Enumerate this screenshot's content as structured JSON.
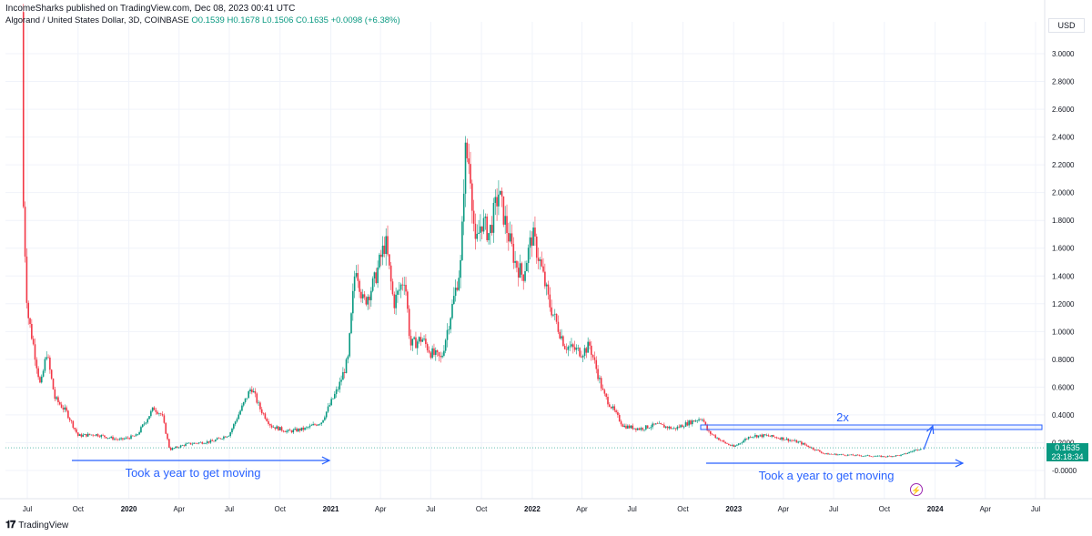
{
  "header": {
    "published": "IncomeSharks published on TradingView.com, Dec 08, 2023 00:41 UTC",
    "symbol": "Algorand / United States Dollar, 3D, COINBASE",
    "open": "O0.1539",
    "high": "H0.1678",
    "low": "L0.1506",
    "close": "C0.1635",
    "change": "+0.0098 (+6.38%)"
  },
  "currency_label": "USD",
  "price_tag": {
    "price": "0.1635",
    "countdown": "23:18:34"
  },
  "footer": {
    "brand": "TradingView",
    "logo_glyph": "𝟏𝟕"
  },
  "colors": {
    "up": "#089981",
    "down": "#f23645",
    "annotation": "#2962ff",
    "price_line": "#089981"
  },
  "chart_data": {
    "type": "candlestick",
    "y_ticks": [
      "3.0000",
      "2.8000",
      "2.6000",
      "2.4000",
      "2.2000",
      "2.0000",
      "1.8000",
      "1.6000",
      "1.4000",
      "1.2000",
      "1.0000",
      "0.8000",
      "0.6000",
      "0.4000",
      "0.2000",
      "-0.0000"
    ],
    "ylim": [
      -0.05,
      3.3
    ],
    "x_ticks": [
      "Jul",
      "Oct",
      "2020",
      "Apr",
      "Jul",
      "Oct",
      "2021",
      "Apr",
      "Jul",
      "Oct",
      "2022",
      "Apr",
      "Jul",
      "Oct",
      "2023",
      "Apr",
      "Jul",
      "Oct",
      "2024",
      "Apr",
      "Jul"
    ],
    "x_tick_dates": [
      "2019-07-01",
      "2019-10-01",
      "2020-01-01",
      "2020-04-01",
      "2020-07-01",
      "2020-10-01",
      "2021-01-01",
      "2021-04-01",
      "2021-07-01",
      "2021-10-01",
      "2022-01-01",
      "2022-04-01",
      "2022-07-01",
      "2022-10-01",
      "2023-01-01",
      "2023-04-01",
      "2023-07-01",
      "2023-10-01",
      "2024-01-01",
      "2024-04-01",
      "2024-07-01"
    ],
    "price_keypoints": [
      [
        "2019-06-21",
        3.3
      ],
      [
        "2019-06-24",
        1.9
      ],
      [
        "2019-07-01",
        1.15
      ],
      [
        "2019-07-10",
        0.95
      ],
      [
        "2019-07-25",
        0.6
      ],
      [
        "2019-08-05",
        0.85
      ],
      [
        "2019-08-20",
        0.52
      ],
      [
        "2019-09-10",
        0.42
      ],
      [
        "2019-10-01",
        0.25
      ],
      [
        "2019-11-01",
        0.26
      ],
      [
        "2019-12-15",
        0.22
      ],
      [
        "2020-01-15",
        0.25
      ],
      [
        "2020-02-15",
        0.45
      ],
      [
        "2020-03-01",
        0.4
      ],
      [
        "2020-03-15",
        0.15
      ],
      [
        "2020-04-15",
        0.19
      ],
      [
        "2020-06-01",
        0.21
      ],
      [
        "2020-07-01",
        0.26
      ],
      [
        "2020-08-10",
        0.6
      ],
      [
        "2020-08-25",
        0.45
      ],
      [
        "2020-09-15",
        0.32
      ],
      [
        "2020-10-15",
        0.28
      ],
      [
        "2020-11-15",
        0.3
      ],
      [
        "2020-12-15",
        0.35
      ],
      [
        "2021-01-15",
        0.6
      ],
      [
        "2021-02-01",
        0.8
      ],
      [
        "2021-02-15",
        1.5
      ],
      [
        "2021-03-01",
        1.2
      ],
      [
        "2021-03-20",
        1.35
      ],
      [
        "2021-04-10",
        1.65
      ],
      [
        "2021-04-25",
        1.2
      ],
      [
        "2021-05-15",
        1.4
      ],
      [
        "2021-05-25",
        0.9
      ],
      [
        "2021-06-15",
        0.95
      ],
      [
        "2021-07-01",
        0.85
      ],
      [
        "2021-07-20",
        0.8
      ],
      [
        "2021-08-10",
        1.2
      ],
      [
        "2021-08-25",
        1.5
      ],
      [
        "2021-09-01",
        2.3
      ],
      [
        "2021-09-10",
        2.2
      ],
      [
        "2021-09-20",
        1.6
      ],
      [
        "2021-10-01",
        1.8
      ],
      [
        "2021-10-15",
        1.7
      ],
      [
        "2021-11-01",
        2.0
      ],
      [
        "2021-11-15",
        1.75
      ],
      [
        "2021-12-01",
        1.5
      ],
      [
        "2021-12-15",
        1.4
      ],
      [
        "2022-01-01",
        1.7
      ],
      [
        "2022-01-15",
        1.5
      ],
      [
        "2022-02-01",
        1.2
      ],
      [
        "2022-03-01",
        0.9
      ],
      [
        "2022-04-01",
        0.85
      ],
      [
        "2022-04-15",
        0.9
      ],
      [
        "2022-05-10",
        0.55
      ],
      [
        "2022-06-15",
        0.32
      ],
      [
        "2022-07-15",
        0.3
      ],
      [
        "2022-08-15",
        0.33
      ],
      [
        "2022-09-15",
        0.3
      ],
      [
        "2022-10-15",
        0.35
      ],
      [
        "2022-11-05",
        0.38
      ],
      [
        "2022-11-15",
        0.28
      ],
      [
        "2022-12-15",
        0.2
      ],
      [
        "2023-01-01",
        0.17
      ],
      [
        "2023-02-01",
        0.25
      ],
      [
        "2023-03-01",
        0.25
      ],
      [
        "2023-04-01",
        0.23
      ],
      [
        "2023-05-01",
        0.2
      ],
      [
        "2023-06-15",
        0.12
      ],
      [
        "2023-08-01",
        0.11
      ],
      [
        "2023-10-01",
        0.1
      ],
      [
        "2023-11-01",
        0.11
      ],
      [
        "2023-12-07",
        0.1635
      ]
    ],
    "annotations": {
      "left_text": "Took a year to get moving",
      "right_text": "Took a year to get moving",
      "target_text": "2x"
    }
  }
}
